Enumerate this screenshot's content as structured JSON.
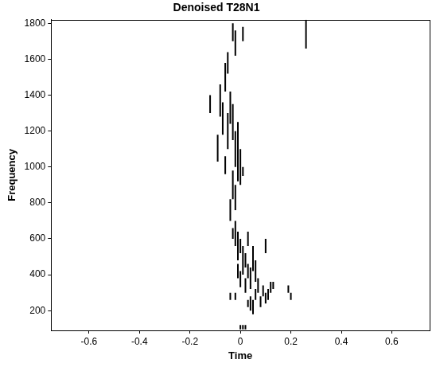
{
  "chart_data": {
    "type": "line",
    "title": "Denoised T28N1",
    "x_label": "Time",
    "y_label": "Frequency",
    "color": "#000000",
    "grid": false,
    "xlim": [
      -0.75,
      0.75
    ],
    "xticks": [
      -0.6,
      -0.4,
      -0.2,
      0,
      0.2,
      0.4,
      0.6
    ],
    "ylim": [
      90,
      1820
    ],
    "yticks": [
      200,
      400,
      600,
      800,
      1000,
      1200,
      1400,
      1600,
      1800
    ],
    "segments": [
      [
        -0.03,
        1700,
        1800
      ],
      [
        -0.02,
        1620,
        1760
      ],
      [
        -0.05,
        1520,
        1640
      ],
      [
        -0.06,
        1420,
        1580
      ],
      [
        -0.12,
        1300,
        1400
      ],
      [
        -0.08,
        1280,
        1460
      ],
      [
        -0.07,
        1180,
        1360
      ],
      [
        -0.09,
        1030,
        1180
      ],
      [
        -0.05,
        1100,
        1300
      ],
      [
        -0.04,
        1240,
        1420
      ],
      [
        -0.03,
        1150,
        1350
      ],
      [
        -0.02,
        1000,
        1200
      ],
      [
        -0.01,
        1050,
        1250
      ],
      [
        0.0,
        900,
        1100
      ],
      [
        -0.01,
        920,
        1060
      ],
      [
        0.01,
        950,
        1000
      ],
      [
        -0.06,
        960,
        1060
      ],
      [
        -0.03,
        820,
        980
      ],
      [
        -0.02,
        760,
        900
      ],
      [
        -0.04,
        700,
        820
      ],
      [
        0.26,
        1660,
        1820
      ],
      [
        0.01,
        1700,
        1780
      ],
      [
        -0.02,
        560,
        700
      ],
      [
        -0.01,
        480,
        640
      ],
      [
        0.0,
        520,
        600
      ],
      [
        0.01,
        400,
        560
      ],
      [
        0.02,
        440,
        520
      ],
      [
        0.03,
        560,
        640
      ],
      [
        0.03,
        380,
        460
      ],
      [
        0.04,
        320,
        440
      ],
      [
        0.05,
        420,
        560
      ],
      [
        0.06,
        360,
        480
      ],
      [
        0.07,
        300,
        380
      ],
      [
        0.02,
        300,
        380
      ],
      [
        0.0,
        330,
        420
      ],
      [
        -0.01,
        380,
        460
      ],
      [
        0.04,
        200,
        280
      ],
      [
        0.05,
        180,
        260
      ],
      [
        0.06,
        260,
        320
      ],
      [
        0.08,
        220,
        280
      ],
      [
        0.09,
        280,
        340
      ],
      [
        0.1,
        240,
        300
      ],
      [
        0.11,
        260,
        320
      ],
      [
        0.12,
        300,
        360
      ],
      [
        0.13,
        320,
        360
      ],
      [
        0.1,
        520,
        600
      ],
      [
        -0.04,
        260,
        300
      ],
      [
        -0.03,
        600,
        660
      ],
      [
        0.2,
        260,
        300
      ],
      [
        0.19,
        300,
        340
      ],
      [
        0.03,
        220,
        260
      ],
      [
        -0.02,
        260,
        300
      ],
      [
        0.0,
        95,
        120
      ],
      [
        0.01,
        95,
        120
      ],
      [
        0.02,
        95,
        120
      ]
    ]
  }
}
